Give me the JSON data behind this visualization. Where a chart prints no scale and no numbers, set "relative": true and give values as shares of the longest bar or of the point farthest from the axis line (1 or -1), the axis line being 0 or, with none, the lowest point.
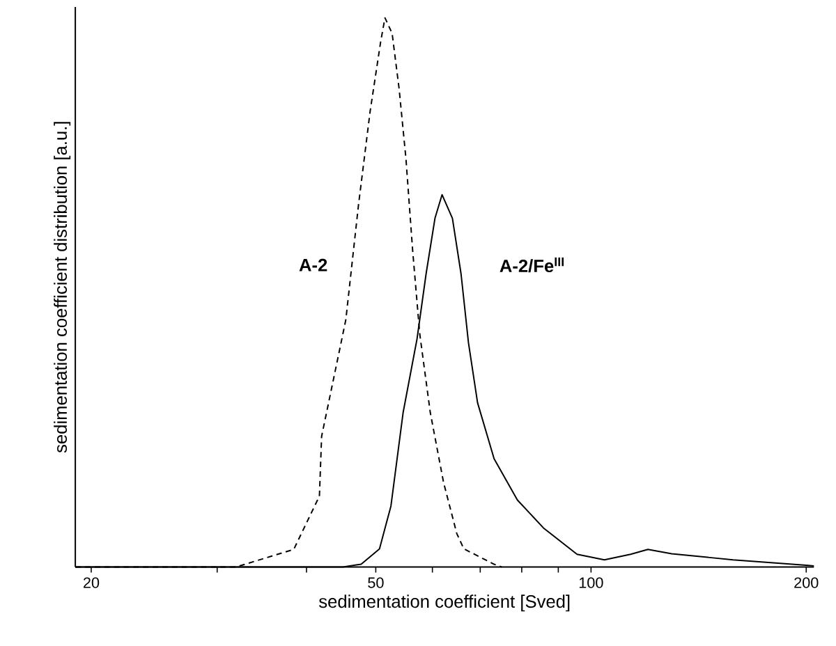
{
  "chart_data": {
    "type": "line",
    "xlabel": "sedimentation coefficient [Sved]",
    "ylabel": "sedimentation coefficient distribution [a.u.]",
    "log": "x",
    "relative": true,
    "marker": "none",
    "xlim": [
      19,
      205
    ],
    "xticks": [
      20,
      {
        "value": 30,
        "label": null
      },
      {
        "value": 40,
        "label": null
      },
      50,
      {
        "value": 60,
        "label": null
      },
      {
        "value": 70,
        "label": null
      },
      {
        "value": 80,
        "label": null
      },
      {
        "value": 90,
        "label": null
      },
      100,
      200
    ],
    "series": [
      {
        "name": "A-2",
        "color": "#000000",
        "line_style": "dashed",
        "x": [
          19,
          31.9,
          38.4,
          41.7,
          42.0,
          45.4,
          47.3,
          49.1,
          50.8,
          51.5,
          52.7,
          53.9,
          55.1,
          56.3,
          57.6,
          59.6,
          62.2,
          64.9,
          66.4,
          73.2,
          75
        ],
        "values": [
          0,
          0,
          0.032,
          0.129,
          0.238,
          0.45,
          0.66,
          0.83,
          0.957,
          1.0,
          0.972,
          0.871,
          0.744,
          0.577,
          0.425,
          0.281,
          0.154,
          0.061,
          0.033,
          0.005,
          0
        ]
      },
      {
        "name": "A-2/Fe$^{III}$",
        "color": "#000000",
        "line_style": "solid",
        "x": [
          19,
          45,
          47.7,
          50.6,
          52.5,
          54.6,
          57.1,
          58.8,
          60.5,
          61.9,
          64.0,
          65.8,
          67.4,
          69.4,
          73.2,
          78.9,
          85.8,
          95.6,
          104.4,
          113.6,
          120.1,
          129.7,
          158,
          200,
          205
        ],
        "values": [
          0,
          0,
          0.005,
          0.033,
          0.111,
          0.281,
          0.415,
          0.534,
          0.635,
          0.678,
          0.635,
          0.534,
          0.408,
          0.299,
          0.197,
          0.122,
          0.071,
          0.023,
          0.013,
          0.023,
          0.032,
          0.024,
          0.013,
          0.003,
          0.002
        ]
      }
    ]
  }
}
